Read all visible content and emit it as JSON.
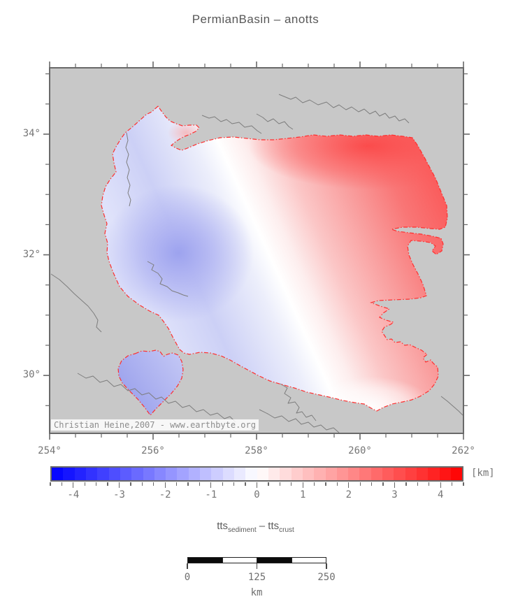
{
  "title": "PermianBasin – anotts",
  "map": {
    "background_color": "#c8c8c8",
    "frame_color": "#696969",
    "basin_outline_color": "#ff2e2e",
    "river_color": "#7d7d7d",
    "copyright": "Christian Heine,2007 - www.earthbyte.org",
    "x_axis": {
      "labels": [
        "254°",
        "256°",
        "258°",
        "260°",
        "262°"
      ],
      "major_ticks": [
        254,
        256,
        258,
        260,
        262
      ],
      "minor_step": 0.5,
      "range": [
        254,
        262
      ]
    },
    "y_axis": {
      "labels": [
        "34°",
        "32°",
        "30°"
      ],
      "major_ticks": [
        34,
        32,
        30
      ],
      "minor_step": 0.5,
      "range": [
        29.04,
        35.1
      ]
    }
  },
  "colorbar": {
    "unit_label": "[km]",
    "tick_values": [
      -4,
      -3,
      -2,
      -1,
      0,
      1,
      2,
      3,
      4
    ],
    "tick_labels": [
      "-4",
      "-3",
      "-2",
      "-1",
      "0",
      "1",
      "2",
      "3",
      "4"
    ],
    "range": [
      -4.5,
      4.5
    ],
    "cell_step": 0.25,
    "min_color": "#0000ff",
    "mid_color": "#ffffff",
    "max_color": "#ff0000"
  },
  "quantity_label": {
    "term1": "tts",
    "sub1": "sediment",
    "operator": "–",
    "term2": "tts",
    "sub2": "crust"
  },
  "scale_bar": {
    "tick_labels": [
      "0",
      "125",
      "250"
    ],
    "tick_values_km": [
      0,
      125,
      250
    ],
    "unit_label": "km",
    "segments": 4,
    "length_km": 250
  }
}
